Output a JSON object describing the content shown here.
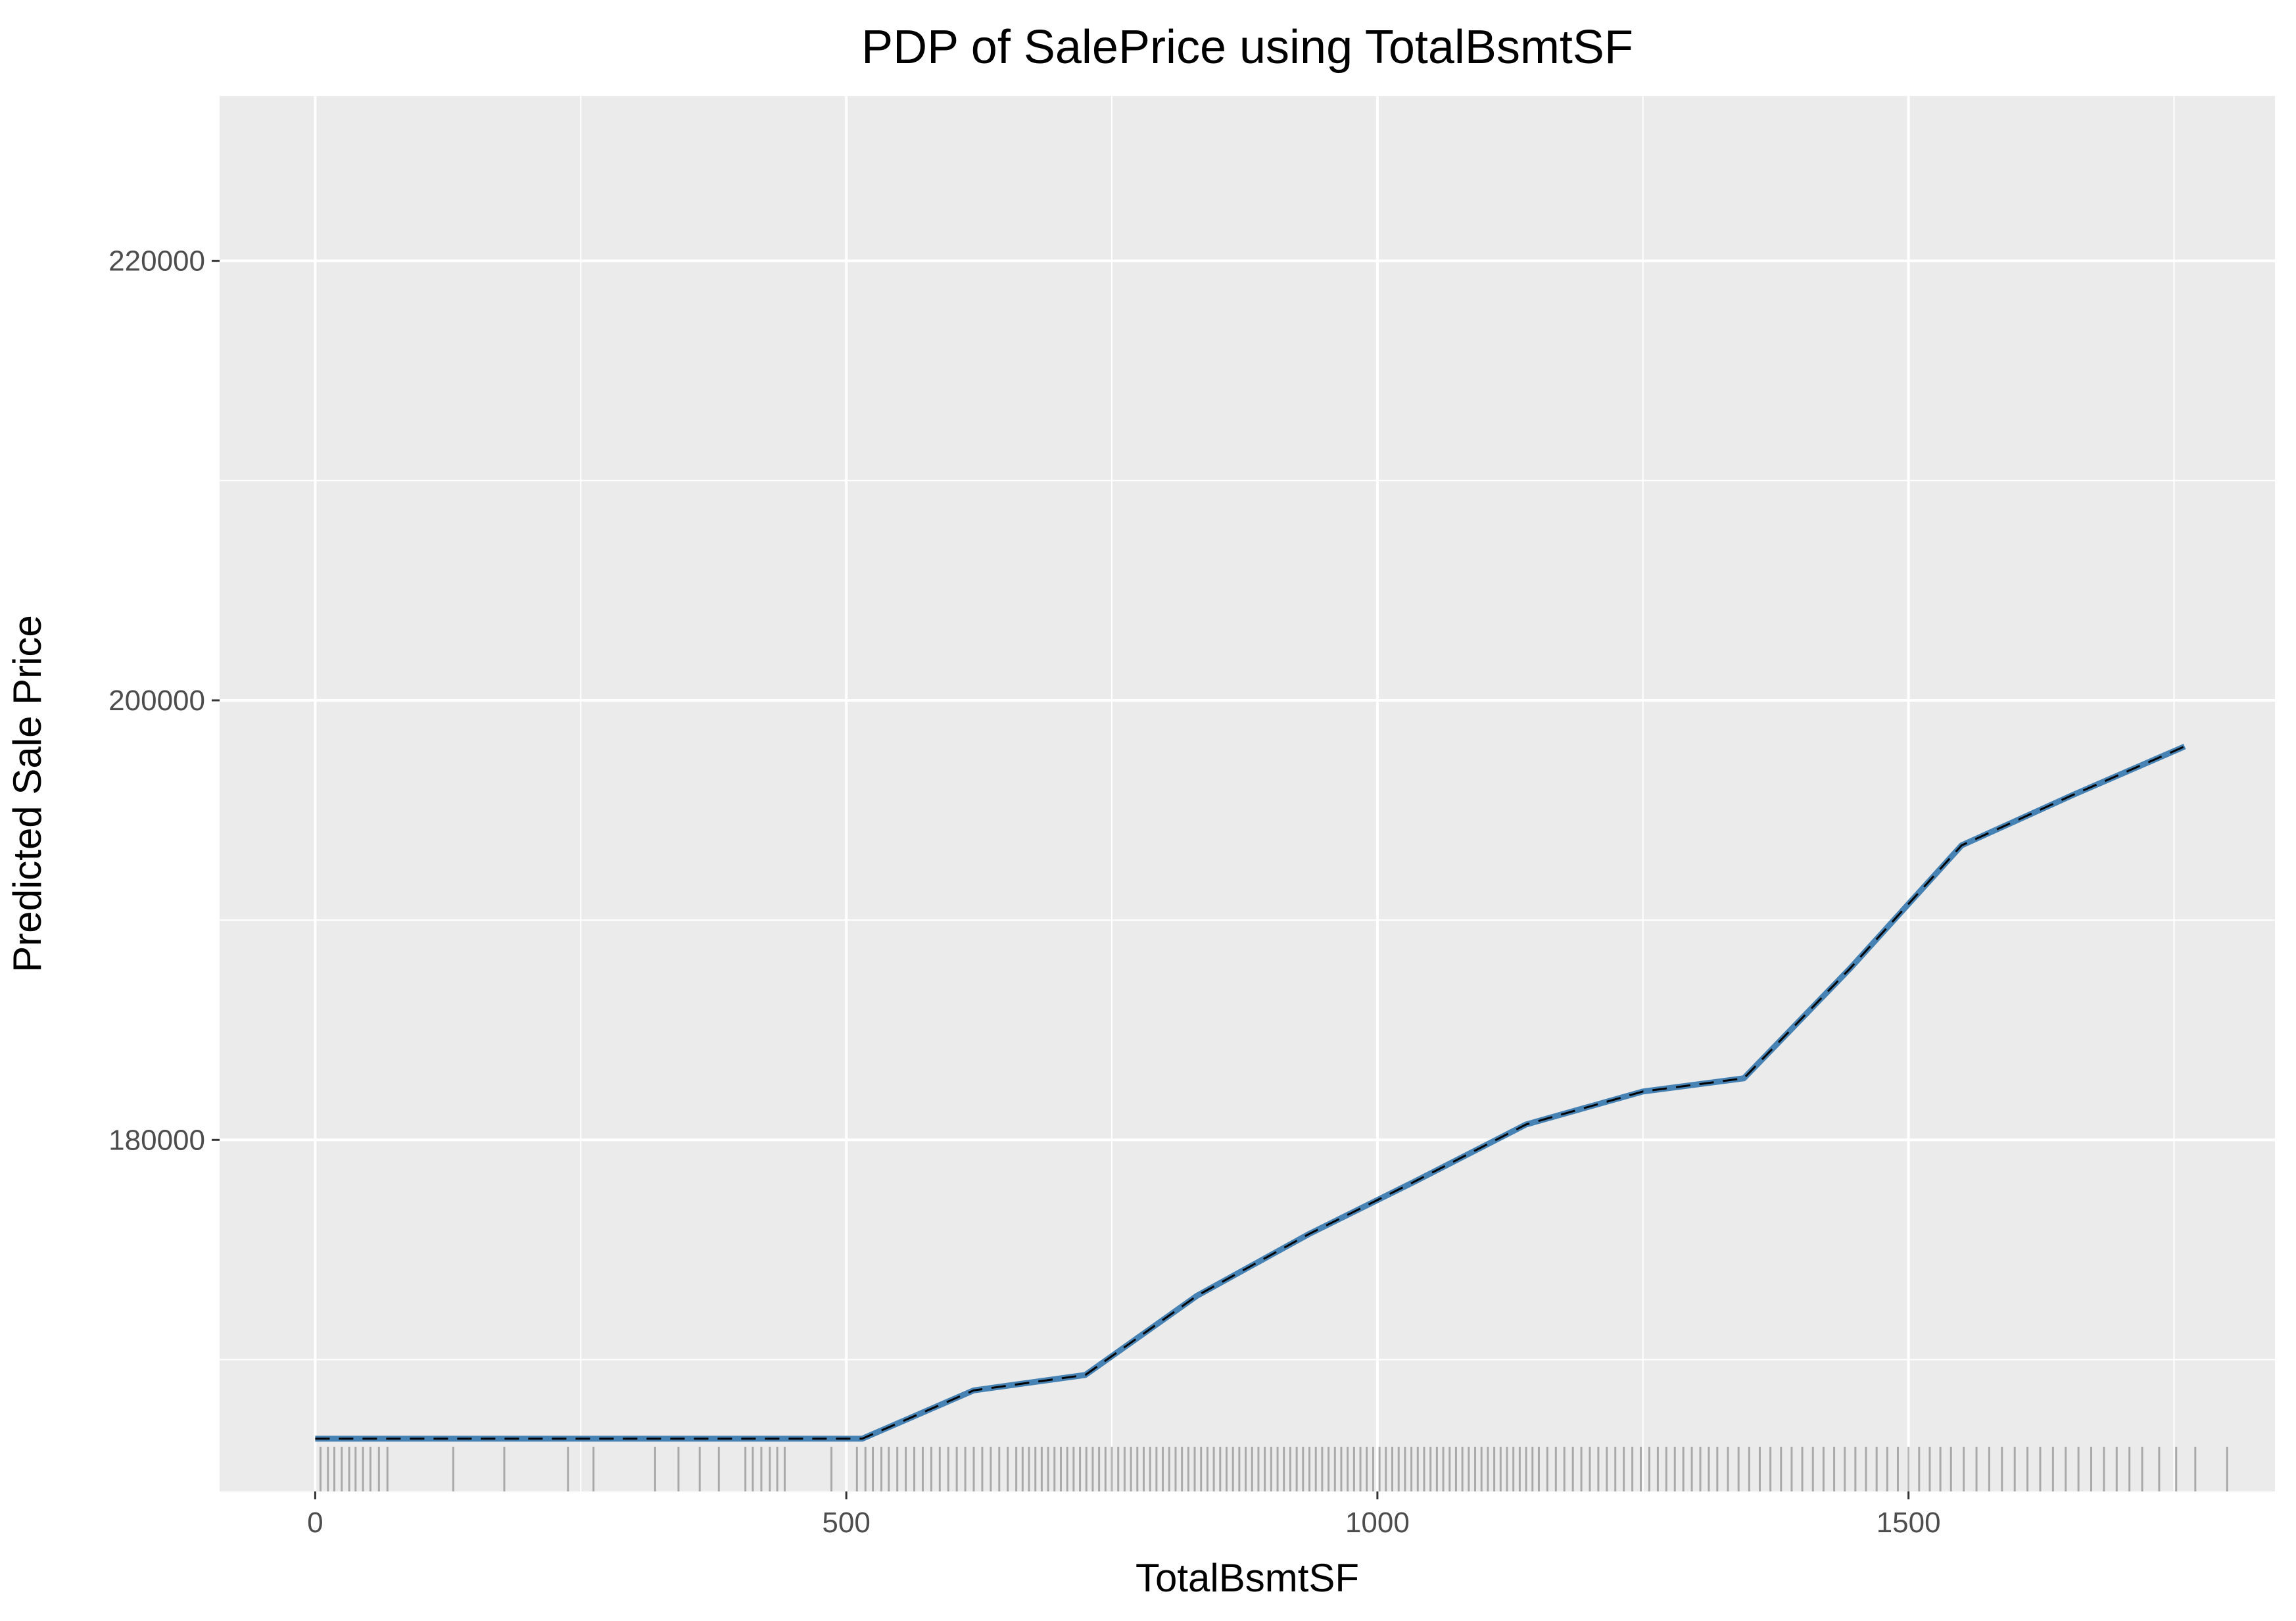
{
  "chart_data": {
    "type": "line",
    "title": "PDP of SalePrice using TotalBsmtSF",
    "xlabel": "TotalBsmtSF",
    "ylabel": "Predicted Sale Price",
    "xlim": [
      -90,
      1845
    ],
    "ylim": [
      164000,
      227500
    ],
    "x_ticks": [
      0,
      500,
      1000,
      1500
    ],
    "x_tick_labels": [
      "0",
      "500",
      "1000",
      "1500"
    ],
    "y_ticks": [
      180000,
      200000,
      220000
    ],
    "y_tick_labels": [
      "180000",
      "200000",
      "220000"
    ],
    "grid": true,
    "legend": "none",
    "series": [
      {
        "x": [
          0,
          515,
          620,
          725,
          830,
          935,
          1035,
          1140,
          1250,
          1345,
          1445,
          1550,
          1655,
          1760
        ],
        "y": [
          166400,
          166400,
          168600,
          169300,
          172900,
          175700,
          178100,
          180700,
          182200,
          182800,
          187800,
          193400,
          195700,
          197900
        ]
      }
    ],
    "rug_x": [
      5,
      12,
      18,
      25,
      32,
      38,
      45,
      52,
      60,
      68,
      130,
      178,
      238,
      262,
      320,
      342,
      362,
      380,
      405,
      412,
      420,
      428,
      435,
      442,
      486,
      510,
      518,
      525,
      533,
      540,
      548,
      556,
      564,
      572,
      580,
      588,
      596,
      604,
      612,
      620,
      628,
      636,
      644,
      652,
      660,
      666,
      672,
      678,
      684,
      690,
      696,
      702,
      708,
      714,
      720,
      726,
      732,
      738,
      744,
      750,
      756,
      762,
      768,
      774,
      780,
      786,
      792,
      798,
      804,
      810,
      816,
      822,
      828,
      834,
      840,
      846,
      852,
      858,
      864,
      870,
      876,
      882,
      888,
      894,
      900,
      906,
      912,
      918,
      924,
      930,
      936,
      942,
      948,
      954,
      960,
      966,
      972,
      978,
      984,
      990,
      996,
      1002,
      1008,
      1014,
      1020,
      1026,
      1032,
      1038,
      1044,
      1050,
      1056,
      1062,
      1068,
      1074,
      1080,
      1086,
      1092,
      1098,
      1104,
      1110,
      1116,
      1122,
      1128,
      1134,
      1140,
      1146,
      1152,
      1160,
      1168,
      1176,
      1184,
      1192,
      1200,
      1208,
      1216,
      1224,
      1232,
      1240,
      1248,
      1256,
      1264,
      1272,
      1280,
      1288,
      1296,
      1304,
      1312,
      1320,
      1330,
      1340,
      1350,
      1360,
      1370,
      1380,
      1390,
      1400,
      1410,
      1420,
      1430,
      1440,
      1450,
      1460,
      1470,
      1480,
      1490,
      1500,
      1510,
      1520,
      1530,
      1540,
      1552,
      1564,
      1576,
      1588,
      1600,
      1612,
      1624,
      1636,
      1648,
      1660,
      1672,
      1684,
      1696,
      1708,
      1720,
      1736,
      1752,
      1770,
      1800
    ]
  }
}
